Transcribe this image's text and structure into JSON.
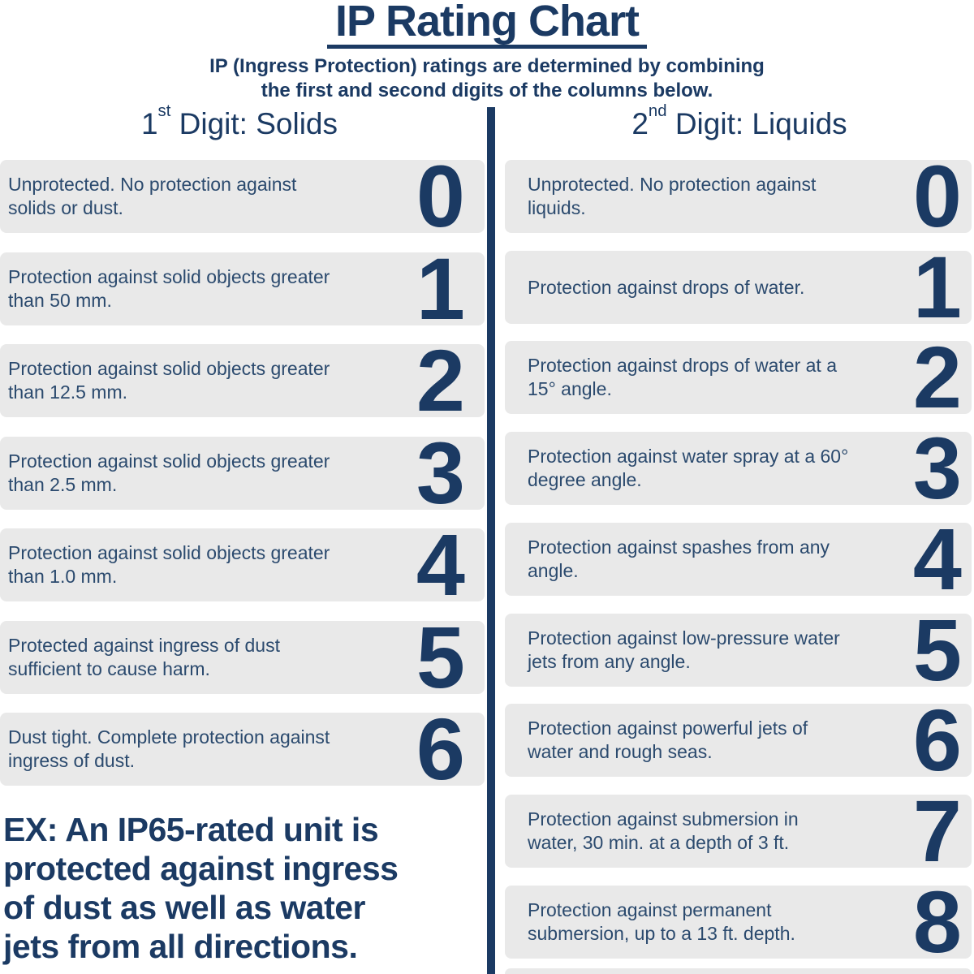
{
  "page": {
    "title": "IP Rating Chart",
    "subtitle_line1": "IP (Ingress Protection) ratings are determined by combining",
    "subtitle_line2": "the first and second digits of the columns below."
  },
  "colors": {
    "navy": "#1b3a63",
    "body_text": "#2b4a6e",
    "box_bg": "#e9e9e9",
    "background": "#ffffff"
  },
  "columns": {
    "left": {
      "header": {
        "num": "1",
        "sup": "st",
        "rest": " Digit: Solids"
      },
      "rows": [
        {
          "digit": "0",
          "description": "Unprotected. No protection against solids or dust."
        },
        {
          "digit": "1",
          "description": "Protection against solid objects greater than 50 mm."
        },
        {
          "digit": "2",
          "description": "Protection against solid objects greater than 12.5 mm."
        },
        {
          "digit": "3",
          "description": "Protection against solid objects greater than 2.5 mm."
        },
        {
          "digit": "4",
          "description": "Protection against solid objects greater than 1.0 mm."
        },
        {
          "digit": "5",
          "description": "Protected against ingress of dust sufficient to cause harm."
        },
        {
          "digit": "6",
          "description": "Dust tight. Complete protection against ingress of dust."
        }
      ],
      "example_note": "EX: An IP65-rated unit is\nprotected against ingress\nof dust as well as water\njets from all directions."
    },
    "right": {
      "header": {
        "num": "2",
        "sup": "nd",
        "rest": " Digit: Liquids"
      },
      "rows": [
        {
          "digit": "0",
          "description": "Unprotected. No protection against liquids."
        },
        {
          "digit": "1",
          "description": "Protection against drops of water."
        },
        {
          "digit": "2",
          "description": "Protection against drops of water at a 15° angle."
        },
        {
          "digit": "3",
          "description": "Protection against water spray at a 60° degree angle."
        },
        {
          "digit": "4",
          "description": "Protection against spashes from any angle."
        },
        {
          "digit": "5",
          "description": "Protection against low-pressure water jets from any angle."
        },
        {
          "digit": "6",
          "description": "Protection against powerful jets of water and rough seas."
        },
        {
          "digit": "7",
          "description": "Protection against submersion in water, 30 min. at a depth of 3 ft."
        },
        {
          "digit": "8",
          "description": "Protection against permanent submersion, up to a 13 ft. depth."
        }
      ]
    }
  }
}
